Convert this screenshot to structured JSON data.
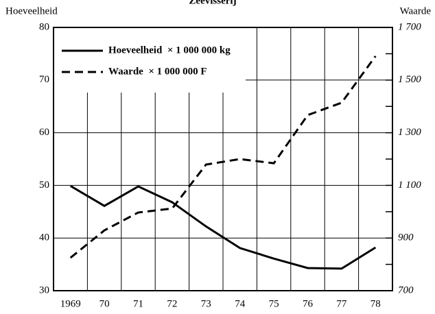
{
  "chart_data": {
    "type": "line",
    "title": "Zeevisserij",
    "y_label": "Hoeveelheid",
    "y2_label": "Waarde",
    "categories": [
      "1969",
      "70",
      "71",
      "72",
      "73",
      "74",
      "75",
      "76",
      "77",
      "78"
    ],
    "series": [
      {
        "name": "Hoeveelheid  × 1 000 000 kg",
        "color": "#000000",
        "dash": "solid",
        "values": [
          49.9,
          46.1,
          49.8,
          46.8,
          42.2,
          38.1,
          36.1,
          34.3,
          34.2,
          38.2
        ]
      },
      {
        "name": "Waarde  × 1 000 000 F",
        "color": "#000000",
        "dash": "dashed",
        "axis": "y2",
        "values": [
          825,
          929,
          997,
          1012,
          1179,
          1200,
          1184,
          1367,
          1414,
          1591
        ]
      }
    ],
    "ylim": [
      30,
      80
    ],
    "yticks": [
      30,
      40,
      50,
      60,
      70,
      80
    ],
    "y2lim": [
      700,
      1700
    ],
    "y2ticks": [
      700,
      900,
      {
        "value": 1100,
        "label": "1 100"
      },
      {
        "value": 1300,
        "label": "1 300"
      },
      {
        "value": 1500,
        "label": "1 500"
      },
      {
        "value": 1700,
        "label": "1 700"
      }
    ],
    "y2minorticks": [
      800,
      1000,
      1200,
      1400,
      1600
    ],
    "grid": true,
    "legend": "upper left"
  }
}
